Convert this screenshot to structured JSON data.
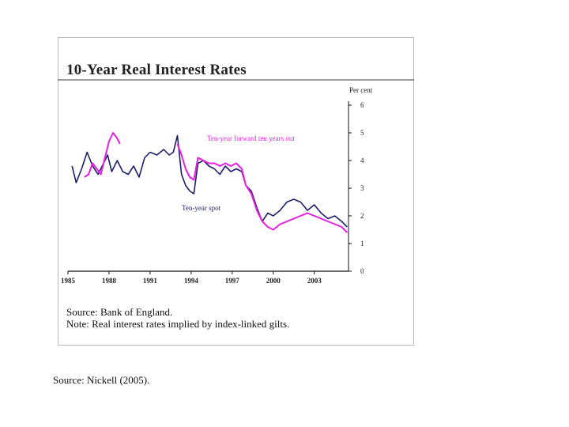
{
  "chart_data": {
    "type": "line",
    "title": "10-Year Real Interest Rates",
    "ylabel": "Per cent",
    "ylim": [
      0,
      6
    ],
    "xlim": [
      1985,
      2005.5
    ],
    "y_ticks": [
      "0",
      "1",
      "2",
      "3",
      "4",
      "5",
      "6"
    ],
    "x_ticks": [
      "1985",
      "1988",
      "1991",
      "1994",
      "1997",
      "2000",
      "2003"
    ],
    "series": [
      {
        "name": "Ten-year spot",
        "color": "#1c1f6b",
        "x": [
          1985.3,
          1985.6,
          1986.0,
          1986.4,
          1986.8,
          1987.2,
          1987.6,
          1987.9,
          1988.2,
          1988.6,
          1989.0,
          1989.4,
          1989.8,
          1990.2,
          1990.6,
          1991.0,
          1991.5,
          1992.0,
          1992.4,
          1992.7,
          1993.0,
          1993.3,
          1993.6,
          1993.9,
          1994.2,
          1994.5,
          1994.9,
          1995.3,
          1995.7,
          1996.1,
          1996.5,
          1996.9,
          1997.3,
          1997.7,
          1998.0,
          1998.4,
          1998.8,
          1999.2,
          1999.6,
          2000.0,
          2000.5,
          2001.0,
          2001.5,
          2002.0,
          2002.5,
          2003.0,
          2003.5,
          2004.0,
          2004.5,
          2005.0,
          2005.4
        ],
        "values": [
          3.8,
          3.2,
          3.7,
          4.3,
          3.8,
          3.5,
          3.9,
          4.2,
          3.6,
          4.0,
          3.6,
          3.5,
          3.8,
          3.4,
          4.1,
          4.3,
          4.2,
          4.4,
          4.2,
          4.3,
          4.9,
          3.5,
          3.1,
          2.9,
          2.8,
          3.9,
          4.0,
          3.8,
          3.7,
          3.5,
          3.8,
          3.6,
          3.7,
          3.6,
          3.1,
          2.9,
          2.3,
          1.8,
          2.1,
          2.0,
          2.2,
          2.5,
          2.6,
          2.5,
          2.2,
          2.4,
          2.1,
          1.9,
          2.0,
          1.8,
          1.6
        ]
      },
      {
        "name": "Ten-year forward ten years out",
        "color": "#e81ee0",
        "x": [
          1986.2,
          1986.5,
          1986.8,
          1987.1,
          1987.4,
          1987.7,
          1988.0,
          1988.3,
          1988.6,
          1988.8,
          1993.0,
          1993.3,
          1993.6,
          1993.9,
          1994.2,
          1994.5,
          1994.9,
          1995.3,
          1995.7,
          1996.1,
          1996.5,
          1996.9,
          1997.3,
          1997.7,
          1998.0,
          1998.4,
          1998.8,
          1999.2,
          1999.6,
          2000.0,
          2000.5,
          2001.0,
          2001.5,
          2002.0,
          2002.5,
          2003.0,
          2003.5,
          2004.0,
          2004.5,
          2005.0,
          2005.4
        ],
        "values": [
          3.4,
          3.5,
          3.9,
          3.7,
          3.5,
          4.1,
          4.7,
          5.0,
          4.8,
          4.6,
          4.6,
          4.2,
          3.7,
          3.4,
          3.3,
          4.1,
          4.0,
          3.9,
          3.9,
          3.8,
          3.9,
          3.8,
          3.9,
          3.7,
          3.1,
          2.8,
          2.2,
          1.8,
          1.6,
          1.5,
          1.7,
          1.8,
          1.9,
          2.0,
          2.1,
          2.0,
          1.9,
          1.8,
          1.7,
          1.6,
          1.4
        ]
      }
    ],
    "annotations": [
      "Ten-year forward ten years out",
      "Ten-year spot"
    ]
  },
  "footer": {
    "source_line": "Source: Bank of England.",
    "note_line": "Note: Real interest rates implied by index-linked gilts."
  },
  "caption": "Source: Nickell (2005)."
}
